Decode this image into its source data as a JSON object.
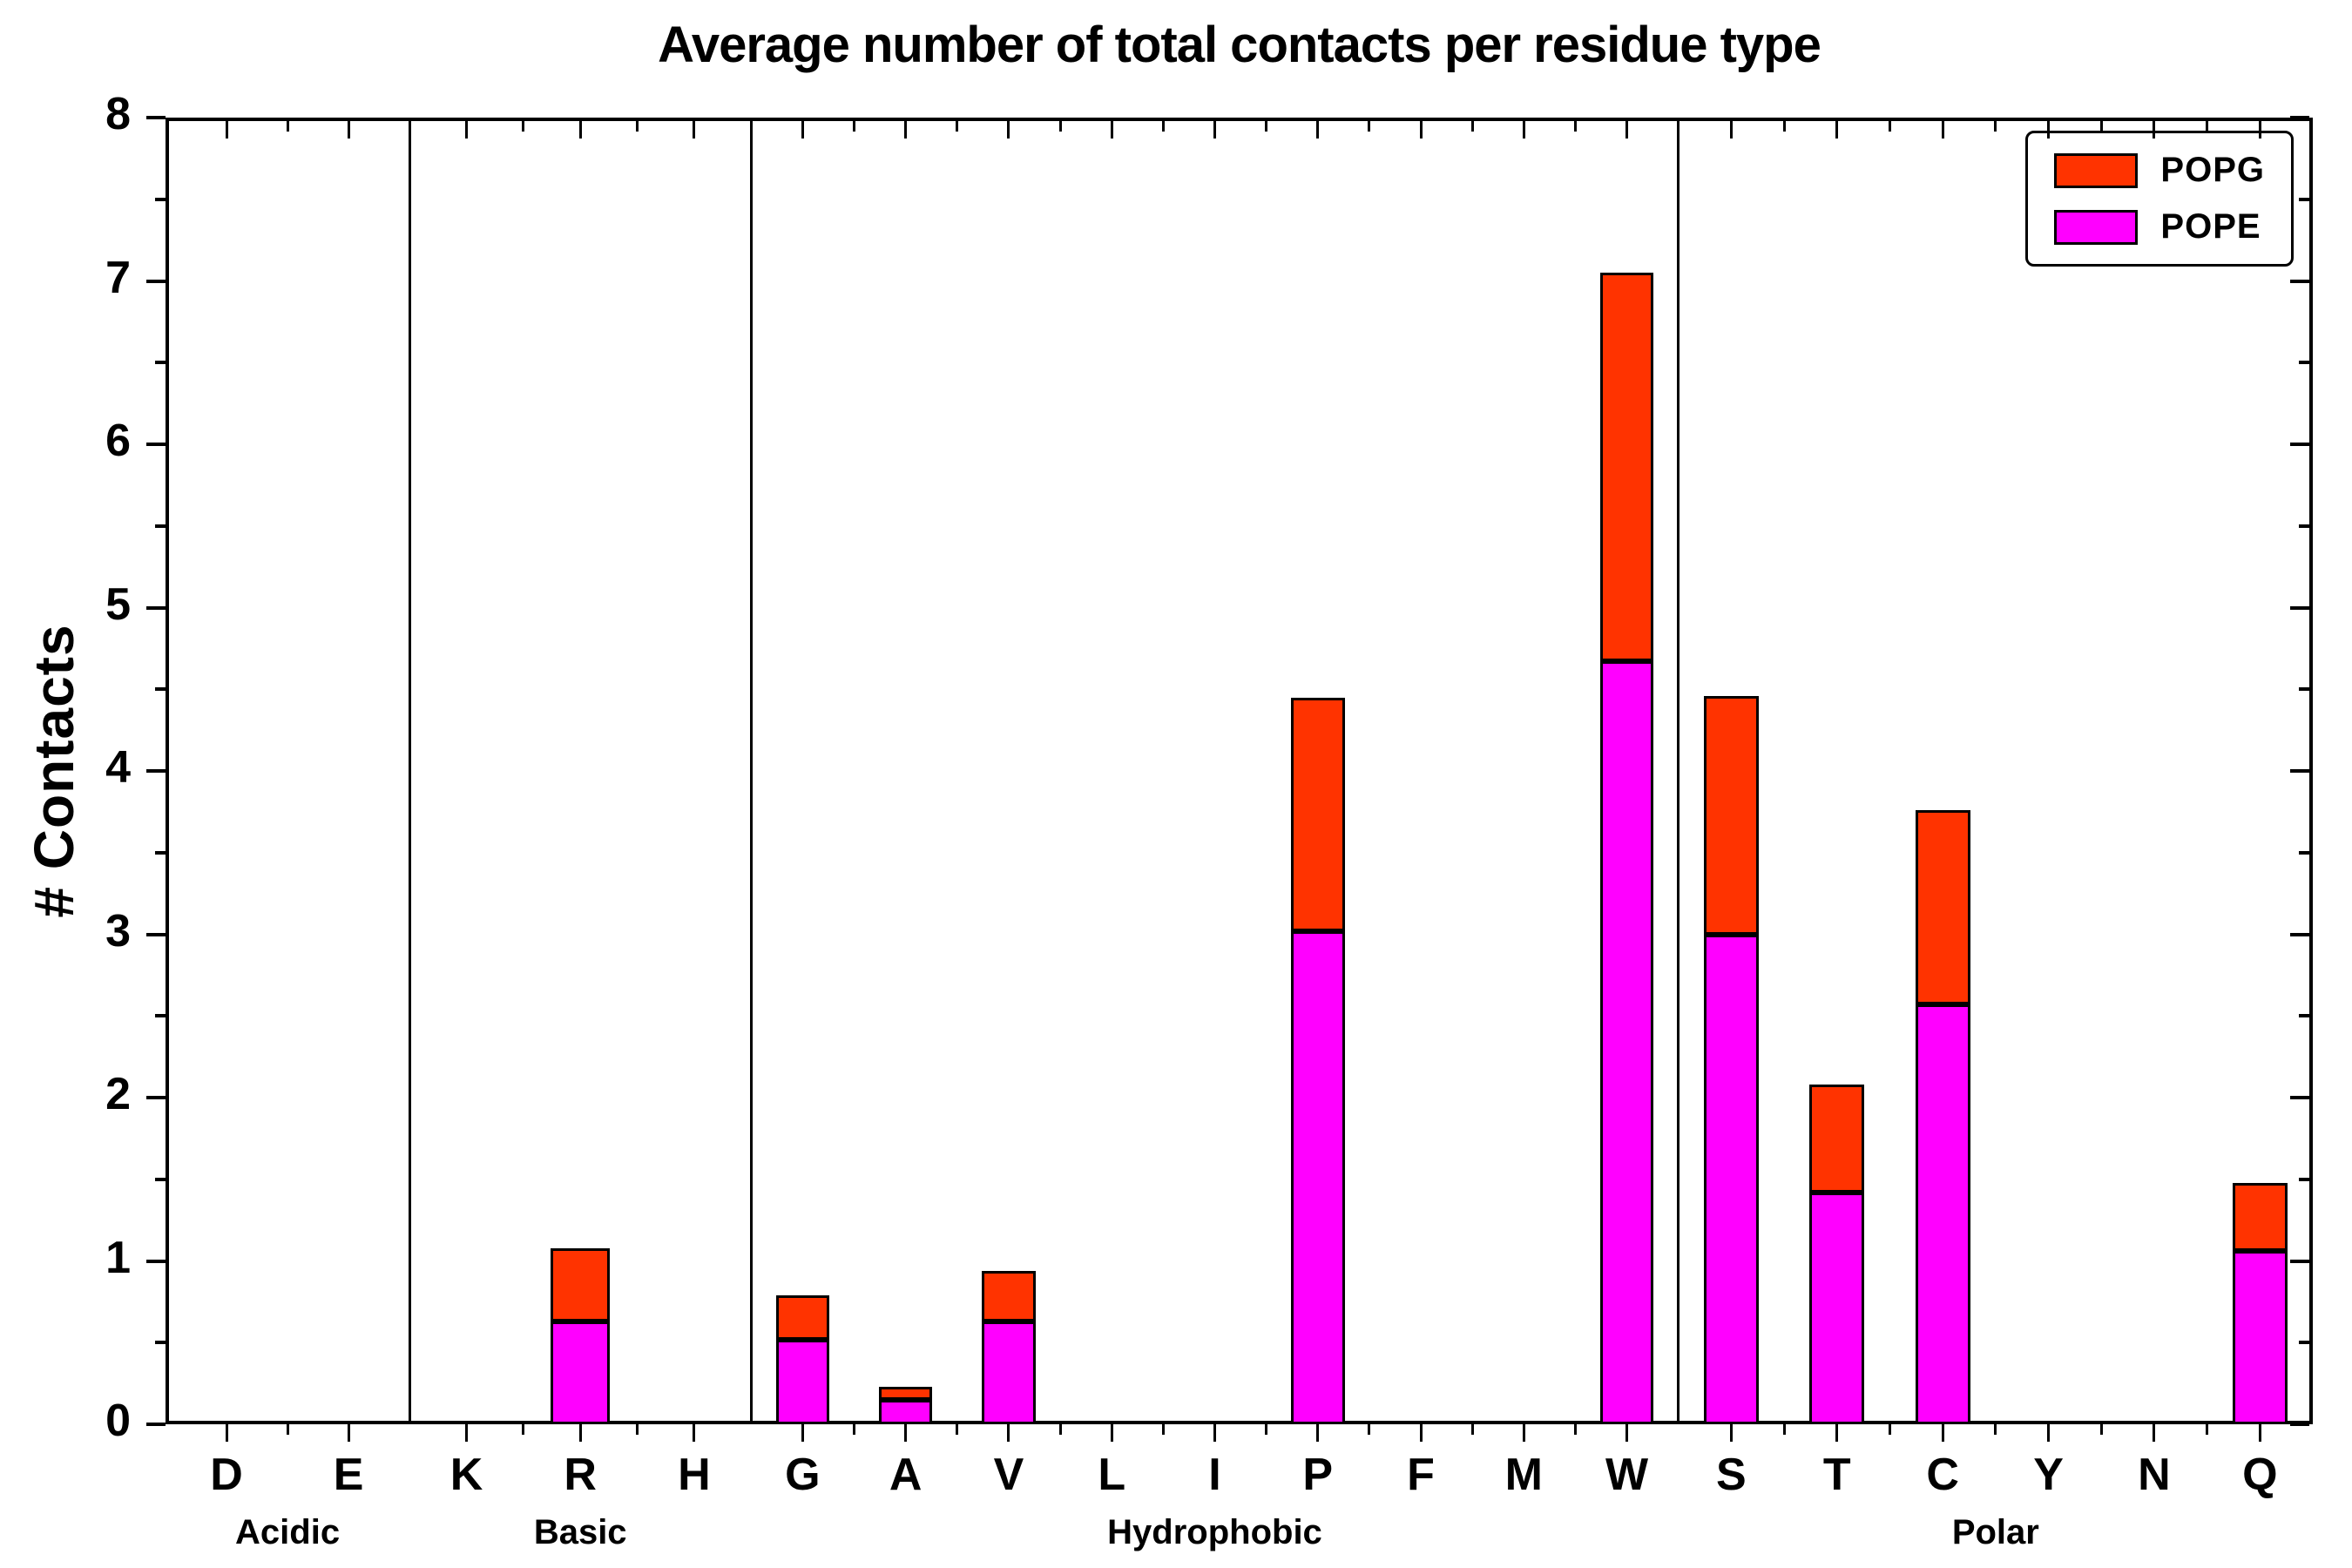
{
  "chart_data": {
    "type": "bar",
    "stacked": true,
    "title": "Average number of total contacts per residue type",
    "ylabel": "# Contacts",
    "ylim": [
      0,
      8
    ],
    "yticks": [
      0,
      1,
      2,
      3,
      4,
      5,
      6,
      7,
      8
    ],
    "legend_position": "upper right",
    "grid": false,
    "groups": [
      {
        "label": "Acidic",
        "categories": [
          "D",
          "E"
        ]
      },
      {
        "label": "Basic",
        "categories": [
          "K",
          "R",
          "H"
        ]
      },
      {
        "label": "Hydrophobic",
        "categories": [
          "G",
          "A",
          "V",
          "L",
          "I",
          "P",
          "F",
          "M",
          "W"
        ]
      },
      {
        "label": "Polar",
        "categories": [
          "S",
          "T",
          "C",
          "Y",
          "N",
          "Q"
        ]
      }
    ],
    "categories_flat": [
      "D",
      "E",
      "K",
      "R",
      "H",
      "G",
      "A",
      "V",
      "L",
      "I",
      "P",
      "F",
      "M",
      "W",
      "S",
      "T",
      "C",
      "Y",
      "N",
      "Q"
    ],
    "series": [
      {
        "name": "POPE",
        "color": "#FF00FF",
        "values": [
          0,
          0,
          0,
          0.63,
          0,
          0.52,
          0.15,
          0.63,
          0,
          0,
          3.02,
          0,
          0,
          4.67,
          3.0,
          1.42,
          2.57,
          0,
          0,
          1.06
        ]
      },
      {
        "name": "POPG",
        "color": "#FF3300",
        "values": [
          0,
          0,
          0,
          0.45,
          0,
          0.27,
          0.08,
          0.31,
          0,
          0,
          1.43,
          0,
          0,
          2.38,
          1.46,
          0.66,
          1.19,
          0,
          0,
          0.42
        ]
      }
    ],
    "totals": [
      0,
      0,
      0,
      1.08,
      0,
      0.79,
      0.23,
      0.94,
      0,
      0,
      4.45,
      0,
      0,
      7.05,
      4.46,
      2.08,
      3.76,
      0,
      0,
      1.48
    ]
  }
}
